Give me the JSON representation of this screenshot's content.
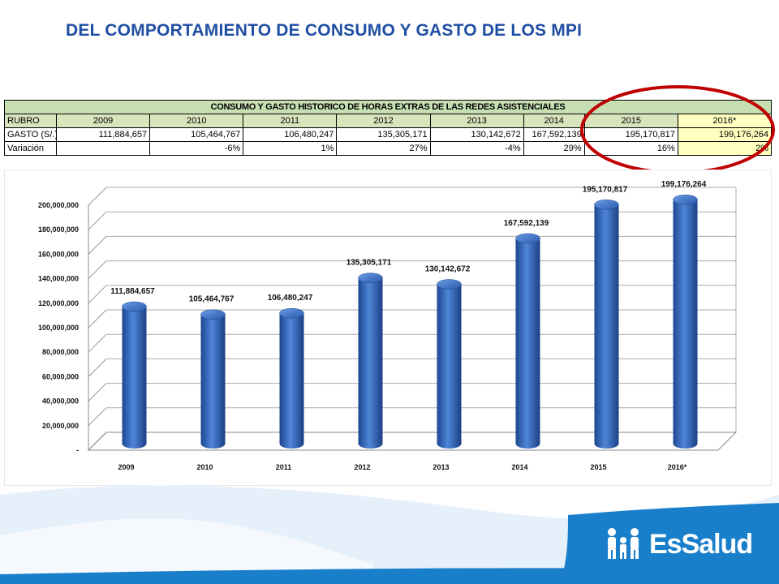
{
  "slide": {
    "title": "DEL COMPORTAMIENTO DE CONSUMO Y GASTO DE LOS  MPI",
    "logo_text": "EsSalud"
  },
  "table": {
    "title": "CONSUMO Y GASTO HISTORICO DE HORAS EXTRAS DE LAS REDES ASISTENCIALES",
    "header_label": "RUBRO",
    "years": [
      "2009",
      "2010",
      "2011",
      "2012",
      "2013",
      "2014",
      "2015",
      "2016*"
    ],
    "rows": [
      {
        "label": "GASTO (S/.)",
        "values": [
          "111,884,657",
          "105,464,767",
          "106,480,247",
          "135,305,171",
          "130,142,672",
          "167,592,139",
          "195,170,817",
          "199,176,264"
        ]
      },
      {
        "label": "Variación",
        "values": [
          "",
          "-6%",
          "1%",
          "27%",
          "-4%",
          "29%",
          "16%",
          "2%"
        ]
      }
    ]
  },
  "chart_data": {
    "type": "bar",
    "categories": [
      "2009",
      "2010",
      "2011",
      "2012",
      "2013",
      "2014",
      "2015",
      "2016*"
    ],
    "values": [
      111884657,
      105464767,
      106480247,
      135305171,
      130142672,
      167592139,
      195170817,
      199176264
    ],
    "data_labels": [
      "111,884,657",
      "105,464,767",
      "106,480,247",
      "135,305,171",
      "130,142,672",
      "167,592,139",
      "195,170,817",
      "199,176,264"
    ],
    "y_ticks": [
      "-",
      "20,000,000",
      "40,000,000",
      "60,000,000",
      "80,000,000",
      "100,000,000",
      "120,000,000",
      "140,000,000",
      "160,000,000",
      "180,000,000",
      "200,000,000"
    ],
    "ylim": [
      0,
      200000000
    ],
    "grid": true,
    "bar_shape": "cylinder",
    "bar_color": "#2f63b5"
  },
  "colors": {
    "title": "#1f4ea3",
    "highlight_ellipse": "#c00000",
    "brand": "#1a7fcb"
  }
}
